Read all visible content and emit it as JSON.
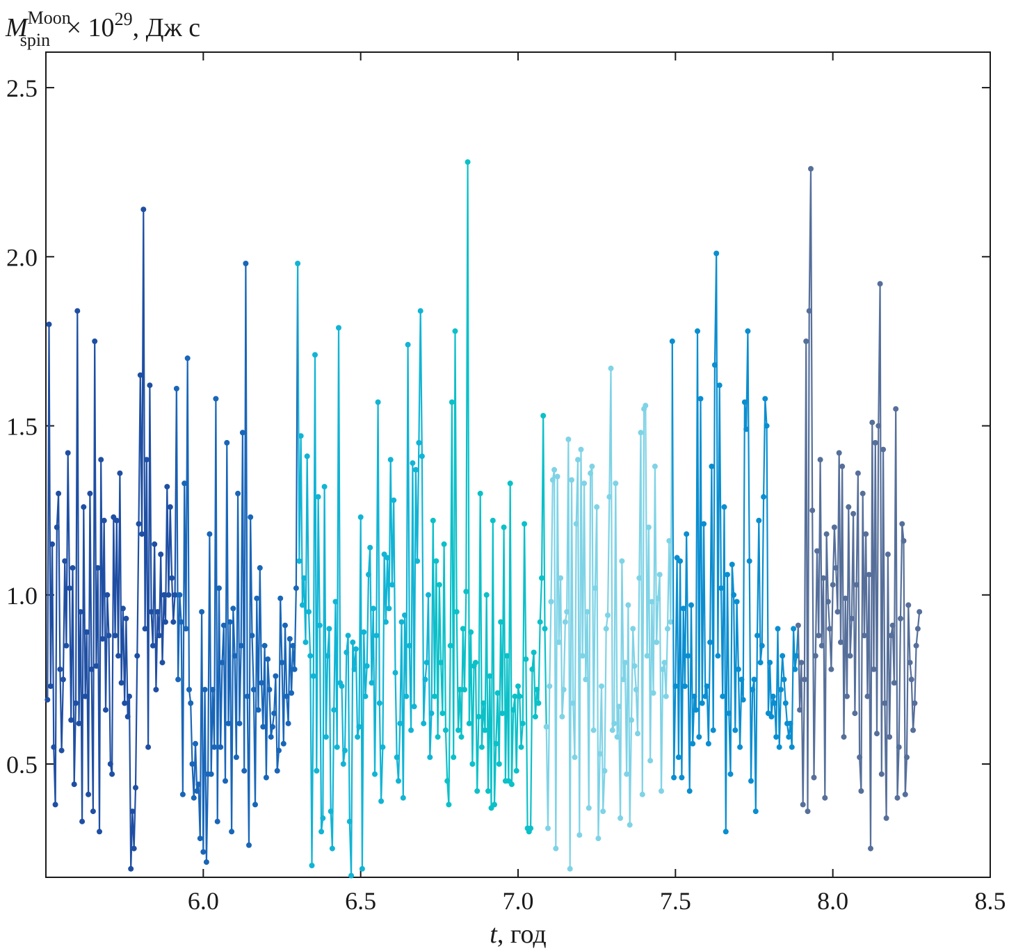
{
  "chart_data": {
    "type": "line",
    "title": "",
    "ylabel": {
      "symbol": "M",
      "superscript": "Moon",
      "subscript": "spin",
      "suffix": " × 10",
      "exponent": "29",
      "unit": ", Дж с"
    },
    "xlabel": {
      "symbol": "t",
      "unit": ", год"
    },
    "xlim": [
      5.5,
      8.5
    ],
    "ylim": [
      0.165,
      2.605
    ],
    "xticks": [
      {
        "value": 6.0,
        "label": "6.0"
      },
      {
        "value": 6.5,
        "label": "6.5"
      },
      {
        "value": 7.0,
        "label": "7.0"
      },
      {
        "value": 7.5,
        "label": "7.5"
      },
      {
        "value": 8.0,
        "label": "8.0"
      },
      {
        "value": 8.5,
        "label": "8.5"
      }
    ],
    "yticks": [
      {
        "value": 0.5,
        "label": "0.5"
      },
      {
        "value": 1.0,
        "label": "1.0"
      },
      {
        "value": 1.5,
        "label": "1.5"
      },
      {
        "value": 2.0,
        "label": "2.0"
      },
      {
        "value": 2.5,
        "label": "2.5"
      }
    ],
    "grid": false,
    "legend": "none",
    "series": [
      {
        "color": "#1f4fa3",
        "x": [
          5.505,
          5.51,
          5.515,
          5.52,
          5.525,
          5.53,
          5.535,
          5.54,
          5.545,
          5.55,
          5.555,
          5.56,
          5.565,
          5.57,
          5.575,
          5.58,
          5.585,
          5.59,
          5.595,
          5.6,
          5.605,
          5.61,
          5.615,
          5.62,
          5.625,
          5.63,
          5.635,
          5.64,
          5.645,
          5.65,
          5.655,
          5.66,
          5.665,
          5.67,
          5.675,
          5.68,
          5.685,
          5.69,
          5.695,
          5.7,
          5.705,
          5.71,
          5.715,
          5.72,
          5.725,
          5.73,
          5.735,
          5.74,
          5.745,
          5.75,
          5.755,
          5.76,
          5.765,
          5.77,
          5.775,
          5.78,
          5.785,
          5.79,
          5.795,
          5.8,
          5.805,
          5.81,
          5.815,
          5.82,
          5.825,
          5.83,
          5.835,
          5.84,
          5.845,
          5.85,
          5.855,
          5.86,
          5.865,
          5.87,
          5.875,
          5.88,
          5.885,
          5.89,
          5.895,
          5.9,
          5.905,
          5.91
        ],
        "y": [
          0.69,
          1.8,
          0.73,
          1.15,
          0.55,
          0.38,
          1.2,
          1.3,
          0.78,
          0.54,
          0.75,
          1.1,
          0.85,
          1.42,
          1.02,
          0.63,
          1.08,
          0.44,
          0.68,
          1.84,
          0.62,
          0.95,
          0.33,
          1.26,
          0.7,
          0.89,
          0.41,
          1.3,
          0.78,
          0.36,
          1.75,
          0.79,
          1.08,
          0.3,
          1.4,
          0.87,
          1.22,
          0.66,
          1.0,
          0.88,
          0.5,
          0.47,
          1.23,
          0.88,
          1.22,
          0.82,
          1.36,
          0.74,
          0.96,
          0.68,
          0.93,
          0.64,
          0.7,
          0.19,
          0.36,
          0.25,
          0.43,
          0.82,
          1.21,
          1.65,
          1.18,
          2.14,
          0.9,
          1.4,
          0.55,
          1.62,
          0.95,
          0.85,
          1.15,
          0.72,
          0.95,
          0.88,
          1.12,
          0.8,
          1.0,
          0.92,
          1.32,
          1.0,
          1.26,
          1.05,
          0.92,
          1.0
        ]
      },
      {
        "color": "#1966b8",
        "x": [
          5.915,
          5.92,
          5.925,
          5.93,
          5.935,
          5.94,
          5.945,
          5.95,
          5.955,
          5.96,
          5.965,
          5.97,
          5.975,
          5.98,
          5.985,
          5.99,
          5.995,
          6.0,
          6.005,
          6.01,
          6.015,
          6.02,
          6.025,
          6.03,
          6.035,
          6.04,
          6.045,
          6.05,
          6.055,
          6.06,
          6.065,
          6.07,
          6.075,
          6.08,
          6.085,
          6.09,
          6.095,
          6.1,
          6.105,
          6.11,
          6.115,
          6.12,
          6.125,
          6.13,
          6.135,
          6.14,
          6.145,
          6.15,
          6.155,
          6.16,
          6.165,
          6.17,
          6.175,
          6.18,
          6.185,
          6.19,
          6.195,
          6.2,
          6.205,
          6.21,
          6.215,
          6.22,
          6.225,
          6.23,
          6.235,
          6.24,
          6.245,
          6.25,
          6.255,
          6.26,
          6.265,
          6.27,
          6.275,
          6.28,
          6.285,
          6.29,
          6.295
        ],
        "y": [
          1.61,
          0.75,
          1.0,
          0.92,
          0.41,
          1.33,
          0.9,
          1.7,
          0.72,
          0.68,
          0.5,
          0.4,
          0.56,
          0.42,
          0.44,
          0.28,
          0.95,
          0.24,
          0.72,
          0.21,
          0.47,
          1.18,
          0.47,
          0.72,
          0.55,
          1.58,
          0.33,
          1.02,
          0.55,
          0.8,
          0.91,
          0.45,
          1.45,
          0.62,
          0.92,
          0.3,
          0.96,
          0.82,
          0.52,
          1.3,
          0.62,
          0.85,
          1.48,
          0.48,
          1.98,
          0.7,
          0.26,
          1.23,
          0.88,
          0.72,
          0.38,
          0.99,
          0.66,
          1.08,
          0.74,
          0.61,
          0.85,
          0.46,
          0.81,
          0.72,
          0.58,
          0.61,
          0.65,
          0.76,
          0.48,
          0.54,
          0.99,
          0.8,
          0.56,
          0.91,
          0.7,
          0.62,
          0.87,
          0.71,
          0.85,
          0.78,
          1.02
        ]
      },
      {
        "color": "#11b4d4",
        "x": [
          6.3,
          6.305,
          6.31,
          6.315,
          6.32,
          6.325,
          6.33,
          6.335,
          6.34,
          6.345,
          6.35,
          6.355,
          6.36,
          6.365,
          6.37,
          6.375,
          6.38,
          6.385,
          6.39,
          6.395,
          6.4,
          6.405,
          6.41,
          6.415,
          6.42,
          6.425,
          6.43,
          6.435,
          6.44,
          6.445,
          6.45,
          6.455,
          6.46,
          6.465,
          6.47,
          6.475,
          6.48,
          6.485,
          6.49,
          6.495,
          6.5,
          6.505,
          6.51,
          6.515,
          6.52,
          6.525,
          6.53,
          6.535,
          6.54,
          6.545,
          6.55,
          6.555,
          6.56,
          6.565,
          6.57,
          6.575,
          6.58,
          6.585,
          6.59,
          6.595,
          6.6,
          6.605,
          6.61,
          6.615,
          6.62,
          6.625,
          6.63,
          6.635,
          6.64,
          6.645,
          6.65,
          6.655,
          6.66,
          6.665,
          6.67,
          6.675,
          6.68,
          6.685,
          6.69,
          6.695,
          6.7,
          6.705,
          6.71,
          6.715,
          6.72,
          6.725
        ],
        "y": [
          1.98,
          1.1,
          1.47,
          0.97,
          1.05,
          0.86,
          1.41,
          0.95,
          0.82,
          0.2,
          0.76,
          1.71,
          0.48,
          1.29,
          0.91,
          0.3,
          0.34,
          1.32,
          0.58,
          0.82,
          0.9,
          0.36,
          0.25,
          0.66,
          0.98,
          0.55,
          1.79,
          0.74,
          0.73,
          0.5,
          0.54,
          0.83,
          0.88,
          0.33,
          0.17,
          0.86,
          0.78,
          0.84,
          0.58,
          0.61,
          1.23,
          0.19,
          0.89,
          0.7,
          0.79,
          1.06,
          1.14,
          0.74,
          0.96,
          0.47,
          0.88,
          1.57,
          0.68,
          0.39,
          0.55,
          1.12,
          0.92,
          1.11,
          0.96,
          1.4,
          1.03,
          1.28,
          0.77,
          0.52,
          0.45,
          0.62,
          0.92,
          0.4,
          0.94,
          0.7,
          1.74,
          0.85,
          0.6,
          1.39,
          0.67,
          1.37,
          1.1,
          1.45,
          1.84,
          1.41,
          0.62,
          0.75,
          0.8,
          1.0,
          0.52,
          0.65
        ]
      },
      {
        "color": "#0cc0c8",
        "x": [
          6.73,
          6.735,
          6.74,
          6.745,
          6.75,
          6.755,
          6.76,
          6.765,
          6.77,
          6.775,
          6.78,
          6.785,
          6.79,
          6.795,
          6.8,
          6.805,
          6.81,
          6.815,
          6.82,
          6.825,
          6.83,
          6.835,
          6.84,
          6.845,
          6.85,
          6.855,
          6.86,
          6.865,
          6.87,
          6.875,
          6.88,
          6.885,
          6.89,
          6.895,
          6.9,
          6.905,
          6.91,
          6.915,
          6.92,
          6.925,
          6.93,
          6.935,
          6.94,
          6.945,
          6.95,
          6.955,
          6.96,
          6.965,
          6.97,
          6.975,
          6.98,
          6.985,
          6.99,
          6.995,
          7.0,
          7.005,
          7.01,
          7.015,
          7.02,
          7.025,
          7.03,
          7.035,
          7.04,
          7.045,
          7.05,
          7.055,
          7.06,
          7.065,
          7.07,
          7.075,
          7.08,
          7.085
        ],
        "y": [
          1.22,
          0.7,
          1.1,
          0.58,
          1.03,
          0.8,
          0.65,
          1.15,
          0.6,
          0.45,
          0.38,
          0.85,
          1.57,
          0.52,
          1.78,
          0.95,
          0.6,
          0.72,
          0.58,
          0.9,
          0.72,
          1.01,
          2.28,
          0.62,
          0.89,
          0.5,
          0.79,
          0.8,
          0.42,
          0.64,
          1.3,
          0.55,
          0.68,
          0.6,
          1.0,
          0.42,
          0.76,
          0.37,
          1.22,
          0.38,
          0.56,
          0.71,
          0.5,
          0.92,
          0.65,
          1.2,
          0.45,
          0.82,
          0.45,
          1.33,
          0.44,
          0.66,
          0.7,
          0.48,
          0.73,
          0.7,
          0.55,
          0.62,
          1.21,
          0.81,
          0.31,
          0.3,
          0.31,
          0.78,
          0.83,
          0.64,
          0.72,
          0.68,
          0.92,
          1.05,
          1.53,
          0.9
        ]
      },
      {
        "color": "#7fd3e6",
        "x": [
          7.09,
          7.095,
          7.1,
          7.105,
          7.11,
          7.115,
          7.12,
          7.125,
          7.13,
          7.135,
          7.14,
          7.145,
          7.15,
          7.155,
          7.16,
          7.165,
          7.17,
          7.175,
          7.18,
          7.185,
          7.19,
          7.195,
          7.2,
          7.205,
          7.21,
          7.215,
          7.22,
          7.225,
          7.23,
          7.235,
          7.24,
          7.245,
          7.25,
          7.255,
          7.26,
          7.265,
          7.27,
          7.275,
          7.28,
          7.285,
          7.29,
          7.295,
          7.3,
          7.305,
          7.31,
          7.315,
          7.32,
          7.325,
          7.33,
          7.335,
          7.34,
          7.345,
          7.35,
          7.355,
          7.36,
          7.365,
          7.37,
          7.375,
          7.38,
          7.385,
          7.39,
          7.395,
          7.4,
          7.405,
          7.41,
          7.415,
          7.42,
          7.425,
          7.43,
          7.435,
          7.44,
          7.445,
          7.45,
          7.455,
          7.46,
          7.465,
          7.47,
          7.475,
          7.48,
          7.485
        ],
        "y": [
          0.61,
          0.31,
          0.73,
          0.98,
          1.34,
          1.37,
          0.25,
          1.35,
          0.86,
          1.05,
          0.64,
          0.72,
          0.92,
          0.95,
          1.46,
          0.19,
          1.34,
          0.68,
          0.52,
          1.21,
          1.4,
          0.29,
          1.43,
          0.82,
          1.33,
          0.75,
          0.95,
          0.37,
          1.36,
          1.38,
          0.6,
          1.02,
          1.26,
          0.28,
          0.53,
          0.73,
          0.36,
          0.48,
          0.9,
          0.94,
          1.29,
          1.67,
          0.6,
          0.62,
          1.33,
          0.58,
          0.67,
          0.34,
          1.1,
          0.75,
          0.8,
          0.47,
          0.97,
          0.32,
          0.63,
          0.9,
          0.79,
          0.72,
          0.59,
          1.05,
          1.48,
          0.41,
          1.55,
          1.56,
          0.82,
          1.2,
          0.51,
          0.98,
          0.71,
          1.38,
          0.86,
          0.99,
          1.06,
          0.42,
          0.78,
          0.8,
          0.7,
          0.9,
          1.16,
          0.92
        ]
      },
      {
        "color": "#0a8ed0",
        "x": [
          7.49,
          7.495,
          7.5,
          7.505,
          7.51,
          7.515,
          7.52,
          7.525,
          7.53,
          7.535,
          7.54,
          7.545,
          7.55,
          7.555,
          7.56,
          7.565,
          7.57,
          7.575,
          7.58,
          7.585,
          7.59,
          7.595,
          7.6,
          7.605,
          7.61,
          7.615,
          7.62,
          7.625,
          7.63,
          7.635,
          7.64,
          7.645,
          7.65,
          7.655,
          7.66,
          7.665,
          7.67,
          7.675,
          7.68,
          7.685,
          7.69,
          7.695,
          7.7,
          7.705,
          7.71,
          7.715,
          7.72,
          7.725,
          7.73,
          7.735,
          7.74,
          7.745,
          7.75,
          7.755,
          7.76,
          7.765,
          7.77,
          7.775,
          7.78,
          7.785,
          7.79,
          7.795,
          7.8,
          7.805,
          7.81,
          7.815,
          7.82,
          7.825,
          7.83,
          7.835,
          7.84,
          7.845,
          7.85,
          7.855,
          7.86,
          7.865,
          7.87,
          7.875,
          7.88,
          7.885
        ],
        "y": [
          1.75,
          0.46,
          0.73,
          1.11,
          0.52,
          1.1,
          0.46,
          0.96,
          0.73,
          1.18,
          0.82,
          0.42,
          0.97,
          0.56,
          0.7,
          0.66,
          1.78,
          0.58,
          1.58,
          0.68,
          1.21,
          0.7,
          0.73,
          0.56,
          0.86,
          1.38,
          0.6,
          1.68,
          2.01,
          0.82,
          1.62,
          1.02,
          0.7,
          1.26,
          0.3,
          1.06,
          0.65,
          0.47,
          1.09,
          1.0,
          0.6,
          0.98,
          0.78,
          0.55,
          0.75,
          0.69,
          1.57,
          1.49,
          1.78,
          1.1,
          0.45,
          0.72,
          0.75,
          0.36,
          0.88,
          1.22,
          0.8,
          0.85,
          1.29,
          1.58,
          1.5,
          0.65,
          0.8,
          0.64,
          0.7,
          0.68,
          0.58,
          0.9,
          0.55,
          0.72,
          0.82,
          0.75,
          0.68,
          0.62,
          0.58,
          0.62,
          0.55,
          0.9,
          0.78,
          0.82
        ]
      },
      {
        "color": "#566f9a",
        "x": [
          7.89,
          7.895,
          7.9,
          7.905,
          7.91,
          7.915,
          7.92,
          7.925,
          7.93,
          7.935,
          7.94,
          7.945,
          7.95,
          7.955,
          7.96,
          7.965,
          7.97,
          7.975,
          7.98,
          7.985,
          7.99,
          7.995,
          8.0,
          8.005,
          8.01,
          8.015,
          8.02,
          8.025,
          8.03,
          8.035,
          8.04,
          8.045,
          8.05,
          8.055,
          8.06,
          8.065,
          8.07,
          8.075,
          8.08,
          8.085,
          8.09,
          8.095,
          8.1,
          8.105,
          8.11,
          8.115,
          8.12,
          8.125,
          8.13,
          8.135,
          8.14,
          8.145,
          8.15,
          8.155,
          8.16,
          8.165,
          8.17,
          8.175,
          8.18,
          8.185,
          8.19,
          8.195,
          8.2,
          8.205,
          8.21,
          8.215,
          8.22,
          8.225,
          8.23,
          8.235,
          8.24,
          8.245,
          8.25,
          8.255,
          8.26,
          8.265,
          8.27,
          8.275
        ],
        "y": [
          0.91,
          0.66,
          0.8,
          0.38,
          0.75,
          1.75,
          0.36,
          1.84,
          2.26,
          1.25,
          0.46,
          0.82,
          1.13,
          0.88,
          1.4,
          0.85,
          1.05,
          0.4,
          1.18,
          0.98,
          0.9,
          0.78,
          1.03,
          1.2,
          1.08,
          0.95,
          1.42,
          0.86,
          1.38,
          0.58,
          0.99,
          0.7,
          1.26,
          0.82,
          0.93,
          1.24,
          0.65,
          1.03,
          1.36,
          0.52,
          0.42,
          1.3,
          0.88,
          1.18,
          0.7,
          1.06,
          0.25,
          1.51,
          0.78,
          1.45,
          0.59,
          1.5,
          1.92,
          0.47,
          1.43,
          0.68,
          0.34,
          1.12,
          0.58,
          0.88,
          0.91,
          0.74,
          1.55,
          0.4,
          0.55,
          0.93,
          1.21,
          1.16,
          0.41,
          0.52,
          0.97,
          0.8,
          0.75,
          0.6,
          0.68,
          0.85,
          0.9,
          0.95
        ]
      }
    ]
  }
}
